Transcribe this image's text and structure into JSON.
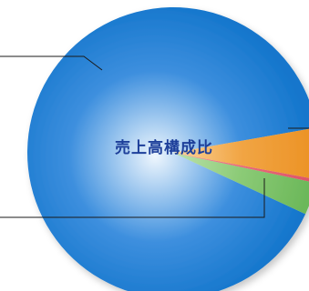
{
  "chart_data": {
    "type": "pie",
    "title": "売上高構成比",
    "title_color": "#1d3f9a",
    "slices": [
      {
        "value": 90.3,
        "color": "#3d8fde",
        "color_light": "#eef6fd",
        "color_dark": "#1476cc"
      },
      {
        "value": 3.6,
        "color": "#8ccb77",
        "color_light": "#c9e8ba",
        "color_dark": "#6cb85a"
      },
      {
        "value": 0.4,
        "color": "#e96a7c",
        "color_light": "#f2a0ac",
        "color_dark": "#dd5568"
      },
      {
        "value": 5.7,
        "color": "#f1a544",
        "color_light": "#fde2b5",
        "color_dark": "#ec9326"
      }
    ],
    "leader_color": "#1a1a1a"
  }
}
